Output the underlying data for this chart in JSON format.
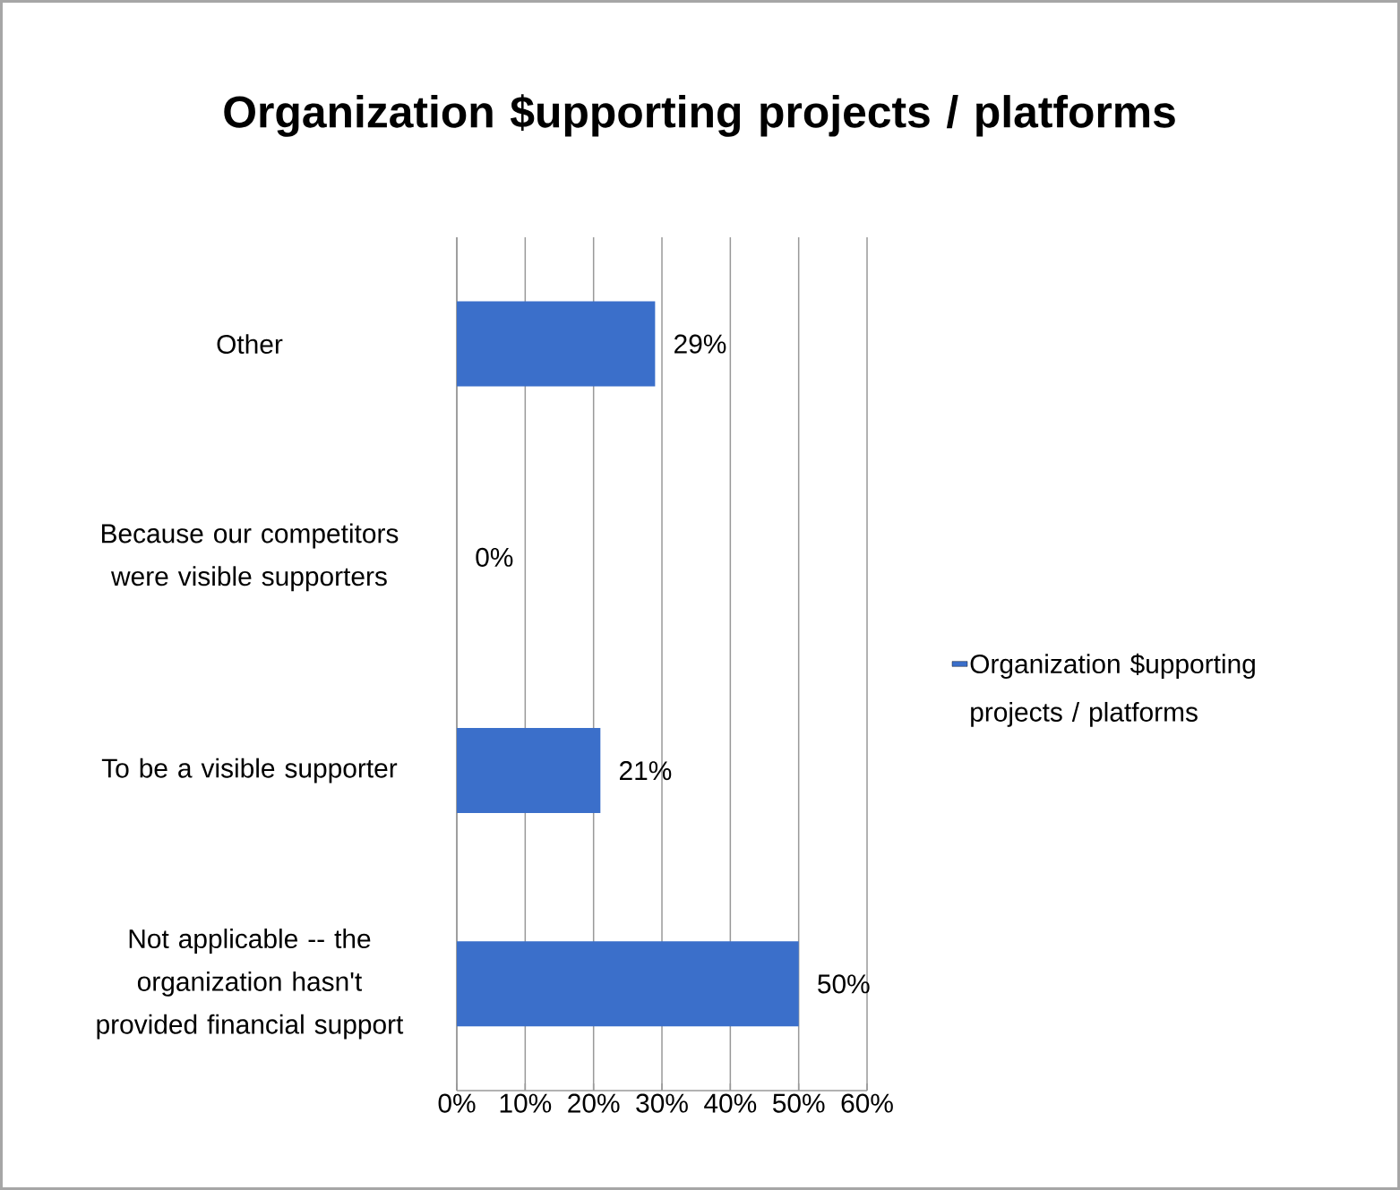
{
  "chart_data": {
    "type": "bar",
    "orientation": "horizontal",
    "title": "Organization $upporting projects / platforms",
    "categories": [
      "Other",
      "Because our competitors were visible supporters",
      "To be a visible supporter",
      "Not applicable -- the organization hasn't provided financial support"
    ],
    "series": [
      {
        "name": "Organization $upporting projects / platforms",
        "color": "#3b6fca",
        "values": [
          29,
          0,
          21,
          50
        ],
        "value_labels": [
          "29%",
          "0%",
          "21%",
          "50%"
        ]
      }
    ],
    "xlim": [
      0,
      60
    ],
    "xticks": [
      {
        "value": 0,
        "label": "0%"
      },
      {
        "value": 10,
        "label": "10%"
      },
      {
        "value": 20,
        "label": "20%"
      },
      {
        "value": 30,
        "label": "30%"
      },
      {
        "value": 40,
        "label": "40%"
      },
      {
        "value": 50,
        "label": "50%"
      },
      {
        "value": 60,
        "label": "60%"
      }
    ],
    "grid": "x",
    "legend": "right"
  }
}
